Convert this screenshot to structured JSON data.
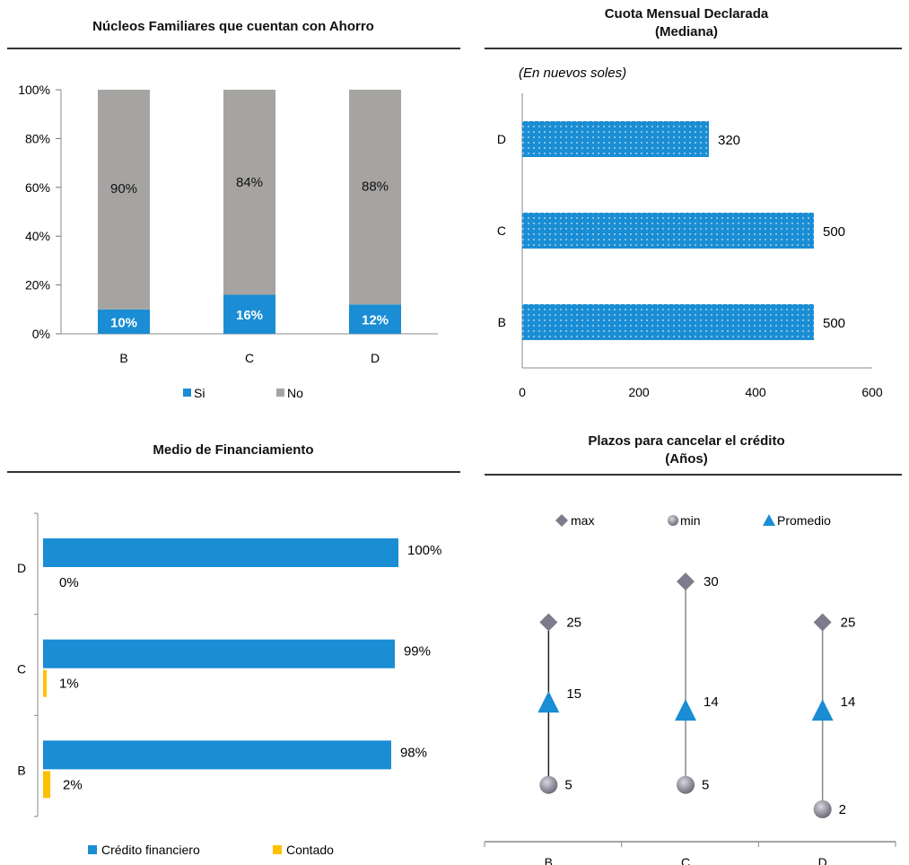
{
  "colors": {
    "blue": "#1a8dd4",
    "gray": "#a6a4a2",
    "yellow": "#ffc000",
    "diamond": "#7f7a8c",
    "triangle": "#1a8dd4"
  },
  "chart_data": [
    {
      "type": "bar",
      "stacked": true,
      "title": "Núcleos Familiares que cuentan con Ahorro",
      "categories": [
        "B",
        "C",
        "D"
      ],
      "series": [
        {
          "name": "Si",
          "values": [
            10,
            16,
            12
          ],
          "labels": [
            "10%",
            "16%",
            "12%"
          ]
        },
        {
          "name": "No",
          "values": [
            90,
            84,
            88
          ],
          "labels": [
            "90%",
            "84%",
            "88%"
          ]
        }
      ],
      "ylim": [
        0,
        100
      ],
      "yticks": [
        "0%",
        "20%",
        "40%",
        "60%",
        "80%",
        "100%"
      ],
      "legend": "bottom"
    },
    {
      "type": "bar",
      "orientation": "horizontal",
      "title": "Cuota Mensual Declarada",
      "subtitle": "(Mediana)",
      "annotation": "(En nuevos soles)",
      "categories": [
        "D",
        "C",
        "B"
      ],
      "values": [
        320,
        500,
        500
      ],
      "labels": [
        "320",
        "500",
        "500"
      ],
      "xlim": [
        0,
        600
      ],
      "xticks": [
        "0",
        "200",
        "400",
        "600"
      ]
    },
    {
      "type": "bar",
      "orientation": "horizontal",
      "title": "Medio de Financiamiento",
      "categories": [
        "D",
        "C",
        "B"
      ],
      "series": [
        {
          "name": "Crédito financiero",
          "values": [
            100,
            99,
            98
          ],
          "labels": [
            "100%",
            "99%",
            "98%"
          ]
        },
        {
          "name": "Contado",
          "values": [
            0,
            1,
            2
          ],
          "labels": [
            "0%",
            "1%",
            "2%"
          ]
        }
      ],
      "xlim": [
        0,
        100
      ],
      "legend": "bottom"
    },
    {
      "type": "scatter",
      "title": "Plazos para cancelar el crédito",
      "subtitle": "(Años)",
      "categories": [
        "B",
        "C",
        "D"
      ],
      "series": [
        {
          "name": "max",
          "values": [
            25,
            30,
            25
          ],
          "labels": [
            "25",
            "30",
            "25"
          ]
        },
        {
          "name": "min",
          "values": [
            5,
            5,
            2
          ],
          "labels": [
            "5",
            "5",
            "2"
          ]
        },
        {
          "name": "Promedio",
          "values": [
            15,
            14,
            14
          ],
          "labels": [
            "15",
            "14",
            "14"
          ]
        }
      ],
      "legend": "top"
    }
  ]
}
